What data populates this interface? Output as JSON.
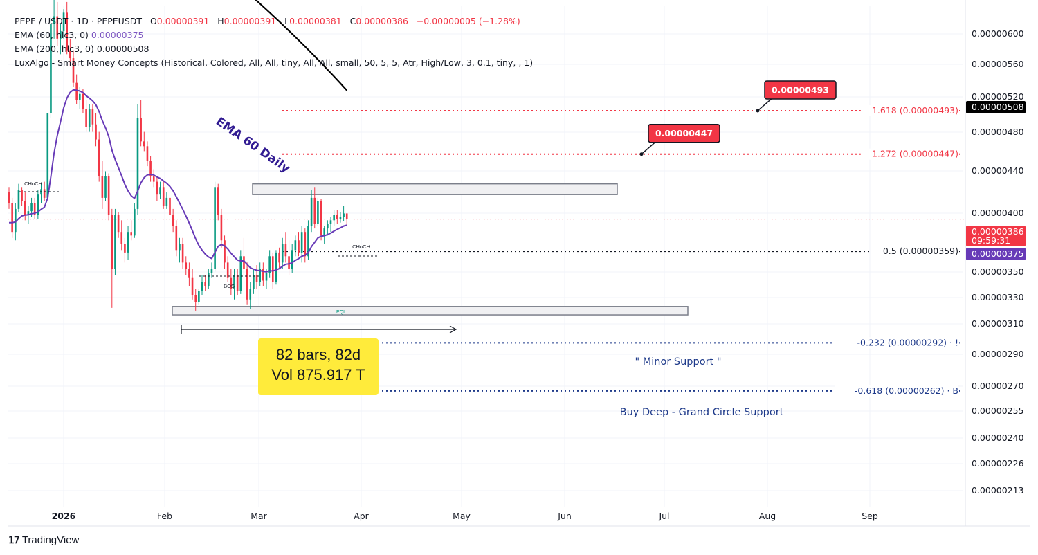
{
  "legend": {
    "symbol": "PEPE / USDT · 1D · PEPEUSDT",
    "open_label": "O",
    "open": "0.00000391",
    "high_label": "H",
    "high": "0.00000391",
    "low_label": "L",
    "low": "0.00000381",
    "close_label": "C",
    "close": "0.00000386",
    "change": "−0.00000005 (−1.28%)",
    "ema60_label": "EMA (60, hlc3, 0)",
    "ema60_value": "0.00000375",
    "ema200_label": "EMA (200, hlc3, 0)",
    "ema200_value": "0.00000508",
    "luxalgo": "LuxAlgo - Smart Money Concepts (Historical, Colored, All, All, tiny, All, All, small, 50, 5, 5, Atr, High/Low, 3, 0.1, tiny, , 1)"
  },
  "measure": {
    "bars": "82 bars, 82d",
    "volume": "Vol 875.917 T"
  },
  "brand": {
    "name": "TradingView"
  },
  "colors": {
    "up": "#089981",
    "down": "#f23645",
    "ema60": "#673ab7",
    "ema200": "#000000",
    "fib_red": "#f23645",
    "fib_blue": "#2962ff",
    "label_blue": "#1e3a8a"
  },
  "chart_data": {
    "type": "candlestick",
    "symbol": "PEPEUSDT",
    "timeframe": "1D",
    "x_ticks": [
      "2026",
      "Feb",
      "Mar",
      "Apr",
      "May",
      "Jun",
      "Jul",
      "Aug",
      "Sep"
    ],
    "y_ticks": [
      "0.00000600",
      "0.00000560",
      "0.00000520",
      "0.00000480",
      "0.00000440",
      "0.00000400",
      "0.00000350",
      "0.00000330",
      "0.00000310",
      "0.00000290",
      "0.00000270",
      "0.00000255",
      "0.00000240",
      "0.00000226",
      "0.00000213"
    ],
    "y_range": [
      2.05e-06,
      6.25e-06
    ],
    "scale": "log",
    "price_tags": [
      {
        "value": "0.00000508",
        "label": "0.00000508",
        "color": "#000000"
      },
      {
        "value": "0.00000386",
        "label": "0.00000386",
        "sub": "09:59:31",
        "color": "#f23645"
      },
      {
        "value": "0.00000375",
        "label": "0.00000375",
        "color": "#673ab7"
      }
    ],
    "levels": [
      {
        "text": "1.618 (0.00000493)",
        "value": 4.93e-06,
        "color": "#f23645"
      },
      {
        "text": "1.272 (0.00000447)",
        "value": 4.47e-06,
        "color": "#f23645"
      },
      {
        "text": "0.5 (0.00000359)",
        "value": 3.59e-06,
        "color": "#131722"
      },
      {
        "text": "-0.232 (0.00000292) · !",
        "value": 2.92e-06,
        "color": "#1e3a8a"
      },
      {
        "text": "-0.618 (0.00000262) · B",
        "value": 2.62e-06,
        "color": "#1e3a8a"
      }
    ],
    "targets": [
      {
        "label": "0.00000493",
        "value": 4.93e-06
      },
      {
        "label": "0.00000447",
        "value": 4.47e-06
      }
    ],
    "annotations": [
      {
        "text": "EMA 60 Daily",
        "color": "#311b92"
      },
      {
        "text": "\" Minor Support \"",
        "color": "#1e3a8a"
      },
      {
        "text": "Buy Deep - Grand Circle Support",
        "color": "#1e3a8a"
      },
      {
        "text": "CHoCH"
      },
      {
        "text": "BOS"
      },
      {
        "text": "EQL"
      }
    ],
    "zones": [
      {
        "name": "resistance",
        "low": 4.08e-06,
        "high": 4.18e-06
      },
      {
        "name": "support",
        "low": 3.11e-06,
        "high": 3.17e-06
      }
    ],
    "candles_ohlc": [
      [
        4.1e-06,
        4.15e-06,
        3.95e-06,
        4e-06
      ],
      [
        4e-06,
        4.05e-06,
        3.7e-06,
        3.75e-06
      ],
      [
        3.75e-06,
        4e-06,
        3.68e-06,
        3.95e-06
      ],
      [
        3.95e-06,
        4.18e-06,
        3.92e-06,
        4.12e-06
      ],
      [
        4.12e-06,
        4.15e-06,
        3.98e-06,
        4.02e-06
      ],
      [
        4.02e-06,
        4.1e-06,
        3.85e-06,
        3.9e-06
      ],
      [
        3.9e-06,
        3.98e-06,
        3.82e-06,
        3.93e-06
      ],
      [
        3.93e-06,
        4.05e-06,
        3.88e-06,
        4e-06
      ],
      [
        4e-06,
        4.05e-06,
        3.86e-06,
        3.9e-06
      ],
      [
        3.9e-06,
        4.12e-06,
        3.86e-06,
        4.08e-06
      ],
      [
        4.08e-06,
        4.18e-06,
        4e-06,
        4.13e-06
      ],
      [
        4.13e-06,
        4.2e-06,
        4.02e-06,
        4.05e-06
      ],
      [
        4.05e-06,
        4.9e-06,
        4.04e-06,
        4.9e-06
      ],
      [
        4.9e-06,
        6.1e-06,
        4.85e-06,
        6e-06
      ],
      [
        6e-06,
        6.4e-06,
        5.8e-06,
        6.1e-06
      ],
      [
        6.1e-06,
        6.3e-06,
        5.7e-06,
        5.8e-06
      ],
      [
        5.8e-06,
        6e-06,
        5.6e-06,
        5.9e-06
      ],
      [
        5.9e-06,
        6.2e-06,
        5.8e-06,
        6.15e-06
      ],
      [
        6.15e-06,
        6.3e-06,
        5.6e-06,
        5.65e-06
      ],
      [
        5.65e-06,
        5.8e-06,
        5.45e-06,
        5.55e-06
      ],
      [
        5.55e-06,
        5.65e-06,
        5.2e-06,
        5.25e-06
      ],
      [
        5.25e-06,
        5.35e-06,
        5e-06,
        5.05e-06
      ],
      [
        5.05e-06,
        5.2e-06,
        4.95e-06,
        5.12e-06
      ],
      [
        5.12e-06,
        5.18e-06,
        4.9e-06,
        4.95e-06
      ],
      [
        4.95e-06,
        5.05e-06,
        4.7e-06,
        4.75e-06
      ],
      [
        4.75e-06,
        5e-06,
        4.7e-06,
        4.95e-06
      ],
      [
        4.95e-06,
        5e-06,
        4.7e-06,
        4.78e-06
      ],
      [
        4.78e-06,
        4.9e-06,
        4.55e-06,
        4.62e-06
      ],
      [
        4.62e-06,
        4.7e-06,
        4.2e-06,
        4.25e-06
      ],
      [
        4.25e-06,
        4.4e-06,
        3.95e-06,
        4.05e-06
      ],
      [
        4.05e-06,
        4.3e-06,
        4.02e-06,
        4.25e-06
      ],
      [
        4.25e-06,
        4.28e-06,
        3.85e-06,
        3.9e-06
      ],
      [
        3.9e-06,
        3.95e-06,
        3.16e-06,
        3.45e-06
      ],
      [
        3.45e-06,
        3.95e-06,
        3.4e-06,
        3.9e-06
      ],
      [
        3.9e-06,
        3.92e-06,
        3.7e-06,
        3.75e-06
      ],
      [
        3.75e-06,
        3.85e-06,
        3.6e-06,
        3.65e-06
      ],
      [
        3.65e-06,
        3.7e-06,
        3.5e-06,
        3.58e-06
      ],
      [
        3.58e-06,
        3.8e-06,
        3.52e-06,
        3.75e-06
      ],
      [
        3.75e-06,
        3.85e-06,
        3.68e-06,
        3.72e-06
      ],
      [
        3.72e-06,
        4e-06,
        3.7e-06,
        3.95e-06
      ],
      [
        3.95e-06,
        5e-06,
        3.9e-06,
        4.85e-06
      ],
      [
        4.85e-06,
        5.05e-06,
        4.55e-06,
        4.6e-06
      ],
      [
        4.6e-06,
        4.7e-06,
        4.5e-06,
        4.55e-06
      ],
      [
        4.55e-06,
        4.6e-06,
        4.35e-06,
        4.4e-06
      ],
      [
        4.4e-06,
        4.45e-06,
        4.2e-06,
        4.25e-06
      ],
      [
        4.25e-06,
        4.32e-06,
        4.15e-06,
        4.2e-06
      ],
      [
        4.2e-06,
        4.25e-06,
        4.02e-06,
        4.08e-06
      ],
      [
        4.08e-06,
        4.2e-06,
        4.04e-06,
        4.15e-06
      ],
      [
        4.15e-06,
        4.2e-06,
        3.95e-06,
        3.98e-06
      ],
      [
        3.98e-06,
        4.1e-06,
        3.95e-06,
        4.05e-06
      ],
      [
        4.05e-06,
        4.08e-06,
        3.85e-06,
        3.9e-06
      ],
      [
        3.9e-06,
        3.95e-06,
        3.75e-06,
        3.8e-06
      ],
      [
        3.8e-06,
        3.85e-06,
        3.55e-06,
        3.6e-06
      ],
      [
        3.6e-06,
        3.7e-06,
        3.5e-06,
        3.65e-06
      ],
      [
        3.65e-06,
        3.7e-06,
        3.45e-06,
        3.5e-06
      ],
      [
        3.5e-06,
        3.55e-06,
        3.4e-06,
        3.45e-06
      ],
      [
        3.45e-06,
        3.5e-06,
        3.32e-06,
        3.38e-06
      ],
      [
        3.38e-06,
        3.45e-06,
        3.22e-06,
        3.25e-06
      ],
      [
        3.25e-06,
        3.3e-06,
        3.14e-06,
        3.2e-06
      ],
      [
        3.2e-06,
        3.3e-06,
        3.18e-06,
        3.28e-06
      ],
      [
        3.28e-06,
        3.4e-06,
        3.25e-06,
        3.35e-06
      ],
      [
        3.35e-06,
        3.4e-06,
        3.28e-06,
        3.32e-06
      ],
      [
        3.32e-06,
        3.45e-06,
        3.3e-06,
        3.42e-06
      ],
      [
        3.42e-06,
        3.5e-06,
        3.38e-06,
        3.45e-06
      ],
      [
        3.45e-06,
        4.2e-06,
        3.43e-06,
        4.15e-06
      ],
      [
        4.15e-06,
        4.18e-06,
        3.85e-06,
        3.9e-06
      ],
      [
        3.9e-06,
        3.95e-06,
        3.62e-06,
        3.68e-06
      ],
      [
        3.68e-06,
        3.72e-06,
        3.45e-06,
        3.5e-06
      ],
      [
        3.5e-06,
        3.55e-06,
        3.35e-06,
        3.38e-06
      ],
      [
        3.38e-06,
        3.45e-06,
        3.25e-06,
        3.3e-06
      ],
      [
        3.3e-06,
        3.45e-06,
        3.22e-06,
        3.4e-06
      ],
      [
        3.4e-06,
        3.45e-06,
        3.25e-06,
        3.28e-06
      ],
      [
        3.28e-06,
        3.6e-06,
        3.26e-06,
        3.55e-06
      ],
      [
        3.55e-06,
        3.7e-06,
        3.4e-06,
        3.45e-06
      ],
      [
        3.45e-06,
        3.5e-06,
        3.18e-06,
        3.22e-06
      ],
      [
        3.22e-06,
        3.35e-06,
        3.15e-06,
        3.3e-06
      ],
      [
        3.3e-06,
        3.45e-06,
        3.26e-06,
        3.4e-06
      ],
      [
        3.4e-06,
        3.48e-06,
        3.3e-06,
        3.35e-06
      ],
      [
        3.35e-06,
        3.5e-06,
        3.32e-06,
        3.45e-06
      ],
      [
        3.45e-06,
        3.5e-06,
        3.32e-06,
        3.36e-06
      ],
      [
        3.36e-06,
        3.45e-06,
        3.3e-06,
        3.42e-06
      ],
      [
        3.42e-06,
        3.6e-06,
        3.38e-06,
        3.55e-06
      ],
      [
        3.55e-06,
        3.58e-06,
        3.3e-06,
        3.35e-06
      ],
      [
        3.35e-06,
        3.6e-06,
        3.33e-06,
        3.58e-06
      ],
      [
        3.58e-06,
        3.62e-06,
        3.45e-06,
        3.5e-06
      ],
      [
        3.5e-06,
        3.7e-06,
        3.45e-06,
        3.65e-06
      ],
      [
        3.65e-06,
        3.75e-06,
        3.5e-06,
        3.55e-06
      ],
      [
        3.55e-06,
        3.68e-06,
        3.4e-06,
        3.45e-06
      ],
      [
        3.45e-06,
        3.65e-06,
        3.42e-06,
        3.6e-06
      ],
      [
        3.6e-06,
        3.72e-06,
        3.55e-06,
        3.68e-06
      ],
      [
        3.68e-06,
        3.75e-06,
        3.55e-06,
        3.58e-06
      ],
      [
        3.58e-06,
        3.8e-06,
        3.5e-06,
        3.75e-06
      ],
      [
        3.75e-06,
        3.78e-06,
        3.5e-06,
        3.55e-06
      ],
      [
        3.55e-06,
        3.85e-06,
        3.52e-06,
        3.8e-06
      ],
      [
        3.8e-06,
        4.12e-06,
        3.75e-06,
        4.05e-06
      ],
      [
        4.05e-06,
        4.15e-06,
        3.78e-06,
        3.82e-06
      ],
      [
        3.82e-06,
        4.05e-06,
        3.8e-06,
        4.02e-06
      ],
      [
        4.02e-06,
        4.04e-06,
        3.68e-06,
        3.72e-06
      ],
      [
        3.72e-06,
        3.8e-06,
        3.65e-06,
        3.78e-06
      ],
      [
        3.78e-06,
        3.85e-06,
        3.72e-06,
        3.82e-06
      ],
      [
        3.82e-06,
        3.88e-06,
        3.75e-06,
        3.85e-06
      ],
      [
        3.85e-06,
        3.94e-06,
        3.8e-06,
        3.9e-06
      ],
      [
        3.9e-06,
        3.94e-06,
        3.82e-06,
        3.86e-06
      ],
      [
        3.86e-06,
        3.92e-06,
        3.83e-06,
        3.88e-06
      ],
      [
        3.88e-06,
        3.98e-06,
        3.84e-06,
        3.91e-06
      ],
      [
        3.91e-06,
        3.91e-06,
        3.81e-06,
        3.86e-06
      ]
    ]
  }
}
